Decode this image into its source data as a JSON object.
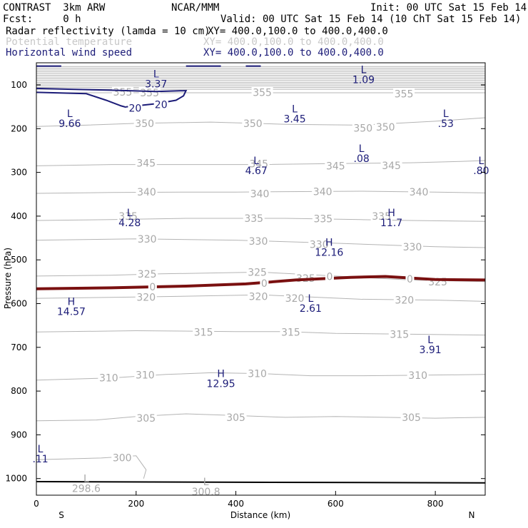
{
  "header": {
    "model": "CONTRAST  3km ARW",
    "center": "NCAR/MMM",
    "init": "Init: 00 UTC Sat 15 Feb 14",
    "fcst": "Fcst:     0 h",
    "valid": "Valid: 00 UTC Sat 15 Feb 14 (10 ChT Sat 15 Feb 14)",
    "fields": [
      {
        "name": "Radar reflectivity (lamda = 10 cm)",
        "xy": "XY= 400.0,100.0 to 400.0,400.0",
        "color": "#000000"
      },
      {
        "name": "Potential temperature",
        "xy": "XY= 400.0,100.0 to 400.0,400.0",
        "color": "#c8c8c8"
      },
      {
        "name": "Horizontal wind speed",
        "xy": "XY= 400.0,100.0 to 400.0,400.0",
        "color": "#1c1c78"
      }
    ]
  },
  "chart_data": {
    "type": "cross-section",
    "xlabel": "Distance (km)",
    "ylabel": "Pressure (hPa)",
    "xlim": [
      0,
      900
    ],
    "ylim": [
      1050,
      50
    ],
    "x_ticks": [
      0,
      200,
      400,
      600,
      800
    ],
    "y_ticks": [
      100,
      200,
      300,
      400,
      500,
      600,
      700,
      800,
      900,
      1000
    ],
    "end_labels": {
      "left": "S",
      "right": "N"
    },
    "colors": {
      "theta": "#b4b4b4",
      "wind": "#1c1c78",
      "zero": "#7a1010",
      "ground": "#000000"
    },
    "theta_contours": [
      {
        "value": "300",
        "points": [
          [
            0,
            957
          ],
          [
            130,
            953
          ],
          [
            200,
            948
          ],
          [
            220,
            980
          ],
          [
            215,
            1000
          ]
        ],
        "labels": [
          [
            172,
            952
          ]
        ]
      },
      {
        "value": "305",
        "points": [
          [
            0,
            868
          ],
          [
            120,
            866
          ],
          [
            200,
            858
          ],
          [
            300,
            852
          ],
          [
            400,
            856
          ],
          [
            500,
            860
          ],
          [
            600,
            858
          ],
          [
            700,
            860
          ],
          [
            800,
            862
          ],
          [
            900,
            860
          ]
        ],
        "labels": [
          [
            220,
            862
          ],
          [
            400,
            860
          ],
          [
            752,
            860
          ]
        ]
      },
      {
        "value": "310",
        "points": [
          [
            0,
            775
          ],
          [
            150,
            770
          ],
          [
            260,
            762
          ],
          [
            350,
            758
          ],
          [
            450,
            760
          ],
          [
            550,
            765
          ],
          [
            650,
            765
          ],
          [
            750,
            764
          ],
          [
            900,
            762
          ]
        ],
        "labels": [
          [
            145,
            770
          ],
          [
            218,
            763
          ],
          [
            443,
            760
          ],
          [
            765,
            764
          ]
        ]
      },
      {
        "value": "315",
        "points": [
          [
            0,
            665
          ],
          [
            200,
            662
          ],
          [
            400,
            664
          ],
          [
            500,
            664
          ],
          [
            600,
            668
          ],
          [
            750,
            670
          ],
          [
            900,
            672
          ]
        ],
        "labels": [
          [
            335,
            665
          ],
          [
            510,
            665
          ],
          [
            728,
            670
          ]
        ]
      },
      {
        "value": "320",
        "points": [
          [
            0,
            588
          ],
          [
            200,
            585
          ],
          [
            350,
            582
          ],
          [
            450,
            580
          ],
          [
            550,
            585
          ],
          [
            650,
            590
          ],
          [
            800,
            592
          ],
          [
            900,
            595
          ]
        ],
        "labels": [
          [
            220,
            585
          ],
          [
            445,
            584
          ],
          [
            518,
            588
          ],
          [
            738,
            592
          ]
        ]
      },
      {
        "value": "325",
        "points": [
          [
            0,
            537
          ],
          [
            150,
            535
          ],
          [
            250,
            532
          ],
          [
            350,
            530
          ],
          [
            450,
            528
          ],
          [
            550,
            534
          ],
          [
            650,
            540
          ],
          [
            750,
            546
          ],
          [
            900,
            550
          ]
        ],
        "labels": [
          [
            222,
            532
          ],
          [
            443,
            528
          ],
          [
            540,
            542
          ],
          [
            805,
            550
          ]
        ]
      },
      {
        "value": "330",
        "points": [
          [
            0,
            455
          ],
          [
            200,
            452
          ],
          [
            400,
            455
          ],
          [
            600,
            462
          ],
          [
            800,
            470
          ],
          [
            900,
            472
          ]
        ],
        "labels": [
          [
            222,
            452
          ],
          [
            445,
            457
          ],
          [
            567,
            465
          ],
          [
            754,
            470
          ]
        ]
      },
      {
        "value": "335",
        "points": [
          [
            0,
            410
          ],
          [
            150,
            408
          ],
          [
            300,
            405
          ],
          [
            500,
            405
          ],
          [
            650,
            408
          ],
          [
            750,
            410
          ],
          [
            900,
            412
          ]
        ],
        "labels": [
          [
            184,
            400
          ],
          [
            436,
            405
          ],
          [
            575,
            406
          ],
          [
            692,
            400
          ]
        ]
      },
      {
        "value": "340",
        "points": [
          [
            0,
            348
          ],
          [
            150,
            346
          ],
          [
            300,
            345
          ],
          [
            400,
            345
          ],
          [
            500,
            344
          ],
          [
            650,
            343
          ],
          [
            800,
            345
          ],
          [
            900,
            347
          ]
        ],
        "labels": [
          [
            221,
            345
          ],
          [
            448,
            349
          ],
          [
            574,
            344
          ],
          [
            767,
            345
          ]
        ]
      },
      {
        "value": "345",
        "points": [
          [
            0,
            285
          ],
          [
            150,
            282
          ],
          [
            300,
            282
          ],
          [
            450,
            282
          ],
          [
            600,
            280
          ],
          [
            750,
            278
          ],
          [
            850,
            275
          ],
          [
            900,
            273
          ]
        ],
        "labels": [
          [
            220,
            279
          ],
          [
            446,
            280
          ],
          [
            600,
            285
          ],
          [
            712,
            284
          ]
        ]
      },
      {
        "value": "350",
        "points": [
          [
            0,
            195
          ],
          [
            100,
            192
          ],
          [
            200,
            188
          ],
          [
            350,
            185
          ],
          [
            500,
            190
          ],
          [
            650,
            192
          ],
          [
            800,
            183
          ],
          [
            900,
            175
          ]
        ],
        "labels": [
          [
            217,
            188
          ],
          [
            434,
            188
          ],
          [
            655,
            199
          ],
          [
            700,
            196
          ]
        ]
      },
      {
        "value": "355",
        "points": [
          [
            0,
            118
          ],
          [
            200,
            118
          ],
          [
            400,
            118
          ],
          [
            600,
            118
          ],
          [
            800,
            118
          ],
          [
            900,
            118
          ]
        ],
        "labels": [
          [
            173,
            116
          ],
          [
            227,
            118
          ],
          [
            453,
            117
          ],
          [
            737,
            120
          ]
        ]
      }
    ],
    "upper_band_isobars": [
      58,
      62,
      66,
      70,
      74,
      78,
      82,
      86,
      90,
      94,
      98,
      102,
      106,
      110
    ],
    "zero_line": {
      "value": "0",
      "points": [
        [
          0,
          566
        ],
        [
          150,
          564
        ],
        [
          300,
          560
        ],
        [
          420,
          555
        ],
        [
          520,
          546
        ],
        [
          630,
          540
        ],
        [
          700,
          538
        ],
        [
          800,
          545
        ],
        [
          900,
          546
        ]
      ],
      "labels": [
        [
          233,
          563
        ],
        [
          457,
          555
        ],
        [
          588,
          540
        ],
        [
          749,
          545
        ]
      ]
    },
    "wind_contours": [
      {
        "value": "20",
        "points": [
          [
            0,
            108
          ],
          [
            70,
            110
          ],
          [
            150,
            112
          ],
          [
            240,
            115
          ],
          [
            300,
            113
          ],
          [
            295,
            125
          ],
          [
            280,
            135
          ],
          [
            240,
            143
          ],
          [
            200,
            148
          ],
          [
            180,
            150
          ]
        ],
        "labels": [
          [
            198,
            153
          ],
          [
            250,
            145
          ]
        ]
      },
      {
        "value": "",
        "points": [
          [
            0,
            117
          ],
          [
            100,
            120
          ],
          [
            140,
            135
          ],
          [
            170,
            148
          ],
          [
            180,
            151
          ]
        ],
        "labels": []
      },
      {
        "value": "",
        "points": [
          [
            0,
            57
          ],
          [
            50,
            57
          ]
        ],
        "labels": []
      },
      {
        "value": "",
        "points": [
          [
            300,
            57
          ],
          [
            370,
            57
          ]
        ],
        "labels": []
      },
      {
        "value": "",
        "points": [
          [
            420,
            57
          ],
          [
            450,
            57
          ]
        ],
        "labels": []
      }
    ],
    "ground": {
      "points": [
        [
          0,
          1007
        ],
        [
          900,
          1010
        ]
      ]
    },
    "extrema": [
      {
        "letter": "L",
        "value": "3.37",
        "x": 240,
        "y": 75
      },
      {
        "letter": "L",
        "value": "1.09",
        "x": 656,
        "y": 65
      },
      {
        "letter": "L",
        "value": "9.66",
        "x": 67,
        "y": 165
      },
      {
        "letter": "L",
        "value": "3.45",
        "x": 518,
        "y": 155
      },
      {
        "letter": "L",
        "value": ".53",
        "x": 821,
        "y": 165
      },
      {
        "letter": "L",
        "value": ".08",
        "x": 652,
        "y": 245
      },
      {
        "letter": "L",
        "value": "4.67",
        "x": 441,
        "y": 273
      },
      {
        "letter": "L",
        "value": ".80",
        "x": 892,
        "y": 273
      },
      {
        "letter": "L",
        "value": "4.28",
        "x": 187,
        "y": 392
      },
      {
        "letter": "H",
        "value": "11.7",
        "x": 712,
        "y": 392
      },
      {
        "letter": "H",
        "value": "12.16",
        "x": 587,
        "y": 460
      },
      {
        "letter": "H",
        "value": "14.57",
        "x": 70,
        "y": 595
      },
      {
        "letter": "L",
        "value": "2.61",
        "x": 550,
        "y": 588
      },
      {
        "letter": "L",
        "value": "3.91",
        "x": 790,
        "y": 682
      },
      {
        "letter": "H",
        "value": "12.95",
        "x": 370,
        "y": 760
      },
      {
        "letter": "L",
        "value": ".11",
        "x": 8,
        "y": 932
      }
    ],
    "gray_extrema": [
      {
        "letter": "L",
        "value": "298.6",
        "x": 100,
        "y": 1000
      },
      {
        "letter": "L",
        "value": "300.8",
        "x": 340,
        "y": 1007
      }
    ]
  }
}
